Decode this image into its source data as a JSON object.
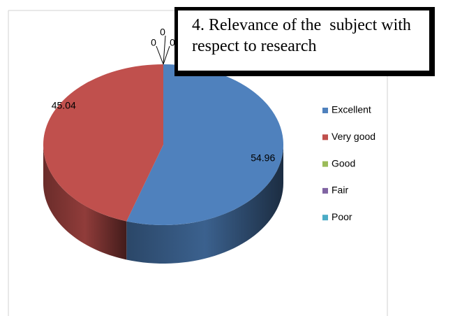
{
  "chart_data": {
    "type": "pie3d",
    "title": "4. Relevance of the  subject with respect to research",
    "categories": [
      "Excellent",
      "Very good",
      "Good",
      "Fair",
      "Poor"
    ],
    "values": [
      54.96,
      45.04,
      0,
      0,
      0
    ],
    "colors": [
      "#4f81bd",
      "#c0504d",
      "#9bbb59",
      "#8064a2",
      "#4bacc6"
    ],
    "legend": "right"
  }
}
